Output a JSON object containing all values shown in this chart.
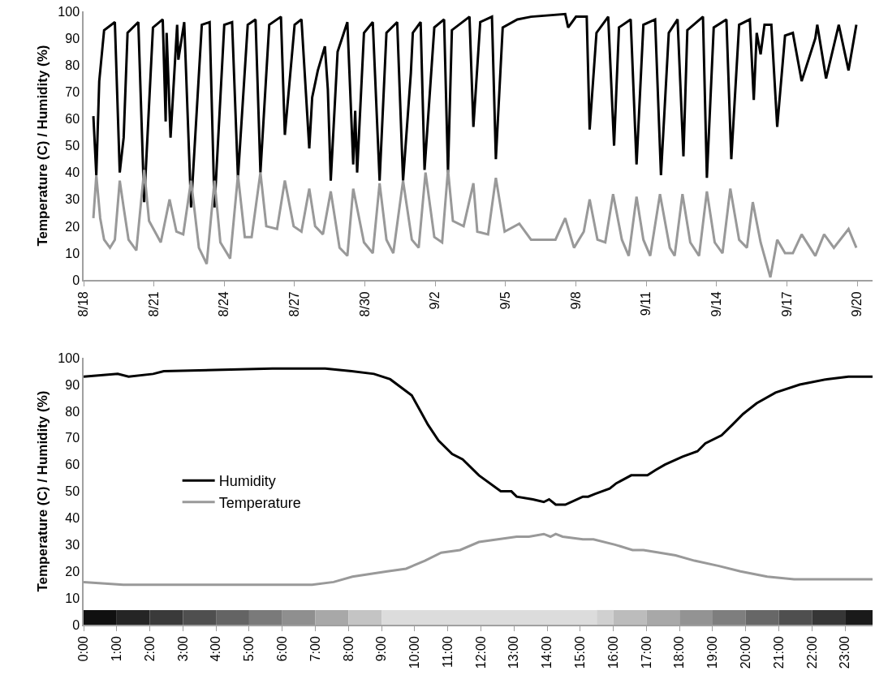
{
  "chart_data": [
    {
      "type": "line",
      "ylabel": "Temperature (C) / Humidity (%)",
      "xlim": [
        "--08-18",
        "--09-20T15:36"
      ],
      "ylim": [
        0,
        100
      ],
      "yticks": [
        0,
        10,
        20,
        30,
        40,
        50,
        60,
        70,
        80,
        90,
        100
      ],
      "xticks": [
        {
          "value": "--08-18",
          "label": "8/18"
        },
        {
          "value": "--08-21",
          "label": "8/21"
        },
        {
          "value": "--08-24",
          "label": "8/24"
        },
        {
          "value": "--08-27",
          "label": "8/27"
        },
        {
          "value": "--08-30",
          "label": "8/30"
        },
        {
          "value": "--09-02",
          "label": "9/2"
        },
        {
          "value": "--09-05",
          "label": "9/5"
        },
        {
          "value": "--09-08",
          "label": "9/8"
        },
        {
          "value": "--09-11",
          "label": "9/11"
        },
        {
          "value": "--09-14",
          "label": "9/14"
        },
        {
          "value": "--09-17",
          "label": "9/17"
        },
        {
          "value": "--09-20",
          "label": "9/20"
        }
      ],
      "grid": false,
      "legend": false,
      "series": [
        {
          "color": "#000000",
          "x": [
            "--08-18T10:00",
            "--08-18T13:00",
            "--08-18T16:00",
            "--08-18T21:00",
            "--08-19T08:00",
            "--08-19T13:00",
            "--08-19T17:00",
            "--08-19T21:00",
            "--08-20T08:00",
            "--08-20T14:00",
            "--08-20T23:00",
            "--08-21T09:00",
            "--08-21T12:00",
            "--08-21T13:00",
            "--08-21T17:00",
            "--08-21T23:45",
            "--08-22T01:00",
            "--08-22T07:00",
            "--08-22T14:00",
            "--08-23T01:00",
            "--08-23T09:00",
            "--08-23T14:00",
            "--08-24T00:00",
            "--08-24T08:00",
            "--08-24T14:00",
            "--08-25T00:00",
            "--08-25T08:00",
            "--08-25T13:00",
            "--08-25T22:00",
            "--08-26T10:00",
            "--08-26T14:00",
            "--08-27T00:00",
            "--08-27T07:00",
            "--08-27T13:00",
            "--08-27T15:00",
            "--08-27T18:00",
            "--08-27T23:45",
            "--08-28T07:00",
            "--08-28T10:00",
            "--08-28T13:00",
            "--08-28T20:00",
            "--08-29T06:00",
            "--08-29T12:00",
            "--08-29T14:00",
            "--08-29T16:00",
            "--08-29T23:00",
            "--08-30T08:00",
            "--08-30T15:00",
            "--08-30T22:00",
            "--08-31T09:00",
            "--08-31T15:00",
            "--08-31T23:00",
            "--09-01T01:00",
            "--09-01T09:00",
            "--09-01T13:00",
            "--09-01T23:00",
            "--09-02T09:00",
            "--09-02T13:00",
            "--09-02T17:00",
            "--09-03T11:00",
            "--09-03T15:00",
            "--09-03T22:00",
            "--09-04T10:00",
            "--09-04T14:00",
            "--09-04T21:00",
            "--09-05T12:00",
            "--09-06T02:00",
            "--09-07T13:00",
            "--09-07T16:00",
            "--09-08T00:00",
            "--09-08T11:00",
            "--09-08T14:00",
            "--09-08T21:00",
            "--09-09T09:00",
            "--09-09T15:00",
            "--09-09T20:00",
            "--09-10T08:00",
            "--09-10T14:00",
            "--09-10T21:00",
            "--09-11T09:00",
            "--09-11T15:00",
            "--09-11T23:00",
            "--09-12T08:00",
            "--09-12T14:00",
            "--09-12T18:00",
            "--09-13T10:00",
            "--09-13T14:00",
            "--09-13T21:00",
            "--09-14T10:00",
            "--09-14T15:00",
            "--09-14T23:00",
            "--09-15T10:00",
            "--09-15T14:00",
            "--09-15T17:00",
            "--09-15T21:00",
            "--09-16T01:00",
            "--09-16T08:00",
            "--09-16T14:00",
            "--09-16T22:00",
            "--09-17T06:00",
            "--09-17T15:00",
            "--09-18T05:00",
            "--09-18T07:00",
            "--09-18T16:00",
            "--09-19T05:00",
            "--09-19T15:00",
            "--09-19T23:00"
          ],
          "values": [
            61,
            39,
            74,
            93,
            96,
            40,
            53,
            92,
            96,
            29,
            94,
            97,
            59,
            92,
            53,
            95,
            82,
            96,
            27,
            95,
            96,
            27,
            95,
            96,
            38,
            95,
            97,
            40,
            95,
            98,
            54,
            95,
            97,
            61,
            49,
            68,
            78,
            87,
            71,
            37,
            85,
            96,
            43,
            63,
            40,
            92,
            96,
            37,
            92,
            96,
            37,
            77,
            92,
            96,
            41,
            94,
            97,
            40,
            93,
            98,
            57,
            96,
            98,
            45,
            94,
            97,
            98,
            99,
            94,
            98,
            98,
            56,
            92,
            98,
            50,
            94,
            97,
            43,
            95,
            97,
            39,
            92,
            97,
            46,
            93,
            98,
            38,
            94,
            97,
            45,
            95,
            97,
            67,
            92,
            84,
            95,
            95,
            57,
            91,
            92,
            74,
            90,
            95,
            75,
            95,
            78,
            95
          ]
        },
        {
          "color": "#999999",
          "x": [
            "--08-18T10:00",
            "--08-18T13:00",
            "--08-18T17:00",
            "--08-18T21:00",
            "--08-19T03:00",
            "--08-19T08:00",
            "--08-19T13:00",
            "--08-19T17:00",
            "--08-19T22:00",
            "--08-20T06:00",
            "--08-20T14:00",
            "--08-20T19:00",
            "--08-21T07:00",
            "--08-21T16:00",
            "--08-21T23:00",
            "--08-22T06:00",
            "--08-22T14:00",
            "--08-22T22:00",
            "--08-23T06:00",
            "--08-23T14:00",
            "--08-23T20:00",
            "--08-24T06:00",
            "--08-24T14:00",
            "--08-24T21:00",
            "--08-25T04:00",
            "--08-25T13:00",
            "--08-25T19:00",
            "--08-26T06:00",
            "--08-26T14:00",
            "--08-26T23:00",
            "--08-27T07:00",
            "--08-27T15:00",
            "--08-27T21:00",
            "--08-28T05:00",
            "--08-28T13:00",
            "--08-28T22:00",
            "--08-29T06:00",
            "--08-29T12:00",
            "--08-29T23:00",
            "--08-30T08:00",
            "--08-30T15:00",
            "--08-30T22:00",
            "--08-31T05:00",
            "--08-31T15:00",
            "--09-01T00:00",
            "--09-01T07:00",
            "--09-01T14:00",
            "--09-01T23:00",
            "--09-02T07:00",
            "--09-02T13:00",
            "--09-02T18:00",
            "--09-03T05:00",
            "--09-03T15:00",
            "--09-03T19:00",
            "--09-04T06:00",
            "--09-04T14:00",
            "--09-04T23:00",
            "--09-05T14:00",
            "--09-06T02:00",
            "--09-07T03:00",
            "--09-07T13:00",
            "--09-07T22:00",
            "--09-08T08:00",
            "--09-08T14:00",
            "--09-08T22:00",
            "--09-09T06:00",
            "--09-09T14:00",
            "--09-09T23:00",
            "--09-10T06:00",
            "--09-10T14:00",
            "--09-10T21:00",
            "--09-11T04:00",
            "--09-11T14:00",
            "--09-12T00:00",
            "--09-12T05:00",
            "--09-12T13:00",
            "--09-12T21:00",
            "--09-13T06:00",
            "--09-13T14:00",
            "--09-13T22:00",
            "--09-14T06:00",
            "--09-14T14:00",
            "--09-14T23:00",
            "--09-15T07:00",
            "--09-15T13:00",
            "--09-15T21:00",
            "--09-16T07:00",
            "--09-16T14:00",
            "--09-16T22:00",
            "--09-17T06:00",
            "--09-17T15:00",
            "--09-18T05:00",
            "--09-18T14:00",
            "--09-19T00:00",
            "--09-19T15:00",
            "--09-19T23:00"
          ],
          "values": [
            23,
            39,
            23,
            15,
            12,
            15,
            37,
            27,
            15,
            11,
            41,
            22,
            14,
            30,
            18,
            17,
            37,
            12,
            6,
            37,
            14,
            8,
            39,
            16,
            16,
            40,
            20,
            19,
            37,
            20,
            18,
            34,
            20,
            17,
            33,
            12,
            9,
            34,
            14,
            10,
            36,
            15,
            10,
            37,
            15,
            12,
            40,
            16,
            14,
            41,
            22,
            20,
            36,
            18,
            17,
            38,
            18,
            21,
            15,
            15,
            23,
            12,
            18,
            30,
            15,
            14,
            32,
            15,
            9,
            31,
            15,
            9,
            32,
            12,
            9,
            32,
            14,
            9,
            33,
            14,
            10,
            34,
            15,
            12,
            29,
            14,
            1,
            15,
            10,
            10,
            17,
            9,
            17,
            12,
            19,
            12
          ]
        }
      ]
    },
    {
      "type": "line",
      "ylabel": "Temperature (C) / Humidity (%)",
      "xlim": [
        0,
        23.83
      ],
      "ylim": [
        0,
        100
      ],
      "yticks": [
        0,
        10,
        20,
        30,
        40,
        50,
        60,
        70,
        80,
        90,
        100
      ],
      "xticks": [
        {
          "value": 0,
          "label": "0:00"
        },
        {
          "value": 1,
          "label": "1:00"
        },
        {
          "value": 2,
          "label": "2:00"
        },
        {
          "value": 3,
          "label": "3:00"
        },
        {
          "value": 4,
          "label": "4:00"
        },
        {
          "value": 5,
          "label": "5:00"
        },
        {
          "value": 6,
          "label": "6:00"
        },
        {
          "value": 7,
          "label": "7:00"
        },
        {
          "value": 8,
          "label": "8:00"
        },
        {
          "value": 9,
          "label": "9:00"
        },
        {
          "value": 10,
          "label": "10:00"
        },
        {
          "value": 11,
          "label": "11:00"
        },
        {
          "value": 12,
          "label": "12:00"
        },
        {
          "value": 13,
          "label": "13:00"
        },
        {
          "value": 14,
          "label": "14:00"
        },
        {
          "value": 15,
          "label": "15:00"
        },
        {
          "value": 16,
          "label": "16:00"
        },
        {
          "value": 17,
          "label": "17:00"
        },
        {
          "value": 18,
          "label": "18:00"
        },
        {
          "value": 19,
          "label": "19:00"
        },
        {
          "value": 20,
          "label": "20:00"
        },
        {
          "value": 21,
          "label": "21:00"
        },
        {
          "value": 22,
          "label": "22:00"
        },
        {
          "value": 23,
          "label": "23:00"
        }
      ],
      "grid": false,
      "legend": "left",
      "bands": [
        {
          "axis": "x",
          "from": 0,
          "to": 1,
          "color": "#101010"
        },
        {
          "axis": "x",
          "from": 1,
          "to": 2,
          "color": "#252525"
        },
        {
          "axis": "x",
          "from": 2,
          "to": 3,
          "color": "#3a3a3a"
        },
        {
          "axis": "x",
          "from": 3,
          "to": 4,
          "color": "#4f4f4f"
        },
        {
          "axis": "x",
          "from": 4,
          "to": 5,
          "color": "#646464"
        },
        {
          "axis": "x",
          "from": 5,
          "to": 6,
          "color": "#7a7a7a"
        },
        {
          "axis": "x",
          "from": 6,
          "to": 7,
          "color": "#8f8f8f"
        },
        {
          "axis": "x",
          "from": 7,
          "to": 8,
          "color": "#a8a8a8"
        },
        {
          "axis": "x",
          "from": 8,
          "to": 9,
          "color": "#c4c4c4"
        },
        {
          "axis": "x",
          "from": 9,
          "to": 15.5,
          "color": "#dcdcdc"
        },
        {
          "axis": "x",
          "from": 15.5,
          "to": 16,
          "color": "#d0d0d0"
        },
        {
          "axis": "x",
          "from": 16,
          "to": 17,
          "color": "#bcbcbc"
        },
        {
          "axis": "x",
          "from": 17,
          "to": 18,
          "color": "#a8a8a8"
        },
        {
          "axis": "x",
          "from": 18,
          "to": 19,
          "color": "#939393"
        },
        {
          "axis": "x",
          "from": 19,
          "to": 20,
          "color": "#7e7e7e"
        },
        {
          "axis": "x",
          "from": 20,
          "to": 21,
          "color": "#676767"
        },
        {
          "axis": "x",
          "from": 21,
          "to": 22,
          "color": "#4f4f4f"
        },
        {
          "axis": "x",
          "from": 22,
          "to": 23,
          "color": "#363636"
        },
        {
          "axis": "x",
          "from": 23,
          "to": 23.83,
          "color": "#1a1a1a"
        }
      ],
      "series": [
        {
          "name": "Humidity",
          "color": "#000000",
          "x": [
            0,
            1.03,
            1.36,
            2.1,
            2.42,
            5.7,
            7.3,
            8.1,
            8.77,
            9.26,
            9.91,
            10.4,
            10.72,
            11.13,
            11.45,
            11.94,
            12.6,
            12.92,
            13.08,
            13.57,
            13.9,
            14.06,
            14.26,
            14.55,
            14.91,
            15.08,
            15.24,
            15.44,
            15.89,
            16.09,
            16.54,
            17.03,
            17.28,
            17.56,
            18.09,
            18.54,
            18.78,
            19.27,
            19.6,
            19.92,
            20.33,
            20.9,
            21.63,
            22.45,
            23.1,
            23.83
          ],
          "values": [
            93,
            94,
            93,
            94,
            95,
            96,
            96,
            95,
            94,
            92,
            86,
            75,
            69,
            64,
            62,
            56,
            50,
            50,
            48,
            47,
            46,
            47,
            45,
            45,
            47,
            48,
            48,
            49,
            51,
            53,
            56,
            56,
            58,
            60,
            63,
            65,
            68,
            71,
            75,
            79,
            83,
            87,
            90,
            92,
            93,
            93
          ]
        },
        {
          "name": "Temperature",
          "color": "#999999",
          "x": [
            0,
            1.2,
            4.05,
            6.9,
            7.55,
            8.12,
            9.17,
            9.74,
            10.31,
            10.8,
            11.37,
            11.94,
            12.51,
            13.08,
            13.45,
            13.9,
            14.1,
            14.26,
            14.47,
            15.08,
            15.4,
            16.05,
            16.58,
            16.91,
            17.4,
            17.88,
            18.45,
            19.19,
            19.84,
            20.65,
            21.46,
            22.28,
            23.83
          ],
          "values": [
            16,
            15,
            15,
            15,
            16,
            18,
            20,
            21,
            24,
            27,
            28,
            31,
            32,
            33,
            33,
            34,
            33,
            34,
            33,
            32,
            32,
            30,
            28,
            28,
            27,
            26,
            24,
            22,
            20,
            18,
            17,
            17,
            17
          ]
        }
      ]
    }
  ]
}
